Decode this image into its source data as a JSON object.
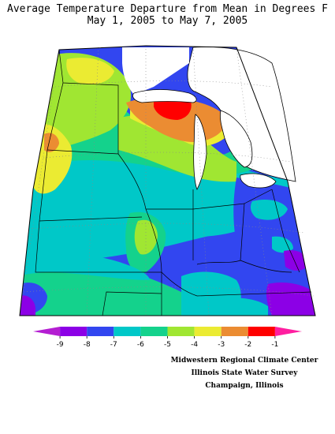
{
  "title_line1": "Average Temperature Departure from Mean in Degrees F",
  "title_line2": "May 1, 2005 to May 7, 2005",
  "legend": {
    "tick_labels": [
      "-9",
      "-8",
      "-7",
      "-6",
      "-5",
      "-4",
      "-3",
      "-2",
      "-1"
    ],
    "bin_colors": [
      "#b41ed2",
      "#8c00e6",
      "#3246f0",
      "#00c8c8",
      "#14d28c",
      "#a0e632",
      "#ebeb32",
      "#eb8c32",
      "#ff0000",
      "#ff1ea0"
    ]
  },
  "credits": {
    "line1": "Midwestern Regional Climate Center",
    "line2": "Illinois State Water Survey",
    "line3": "Champaign, Illinois"
  },
  "colors": {
    "frame": "#000000",
    "graticule": "#888888",
    "state_lines": "#000000"
  }
}
